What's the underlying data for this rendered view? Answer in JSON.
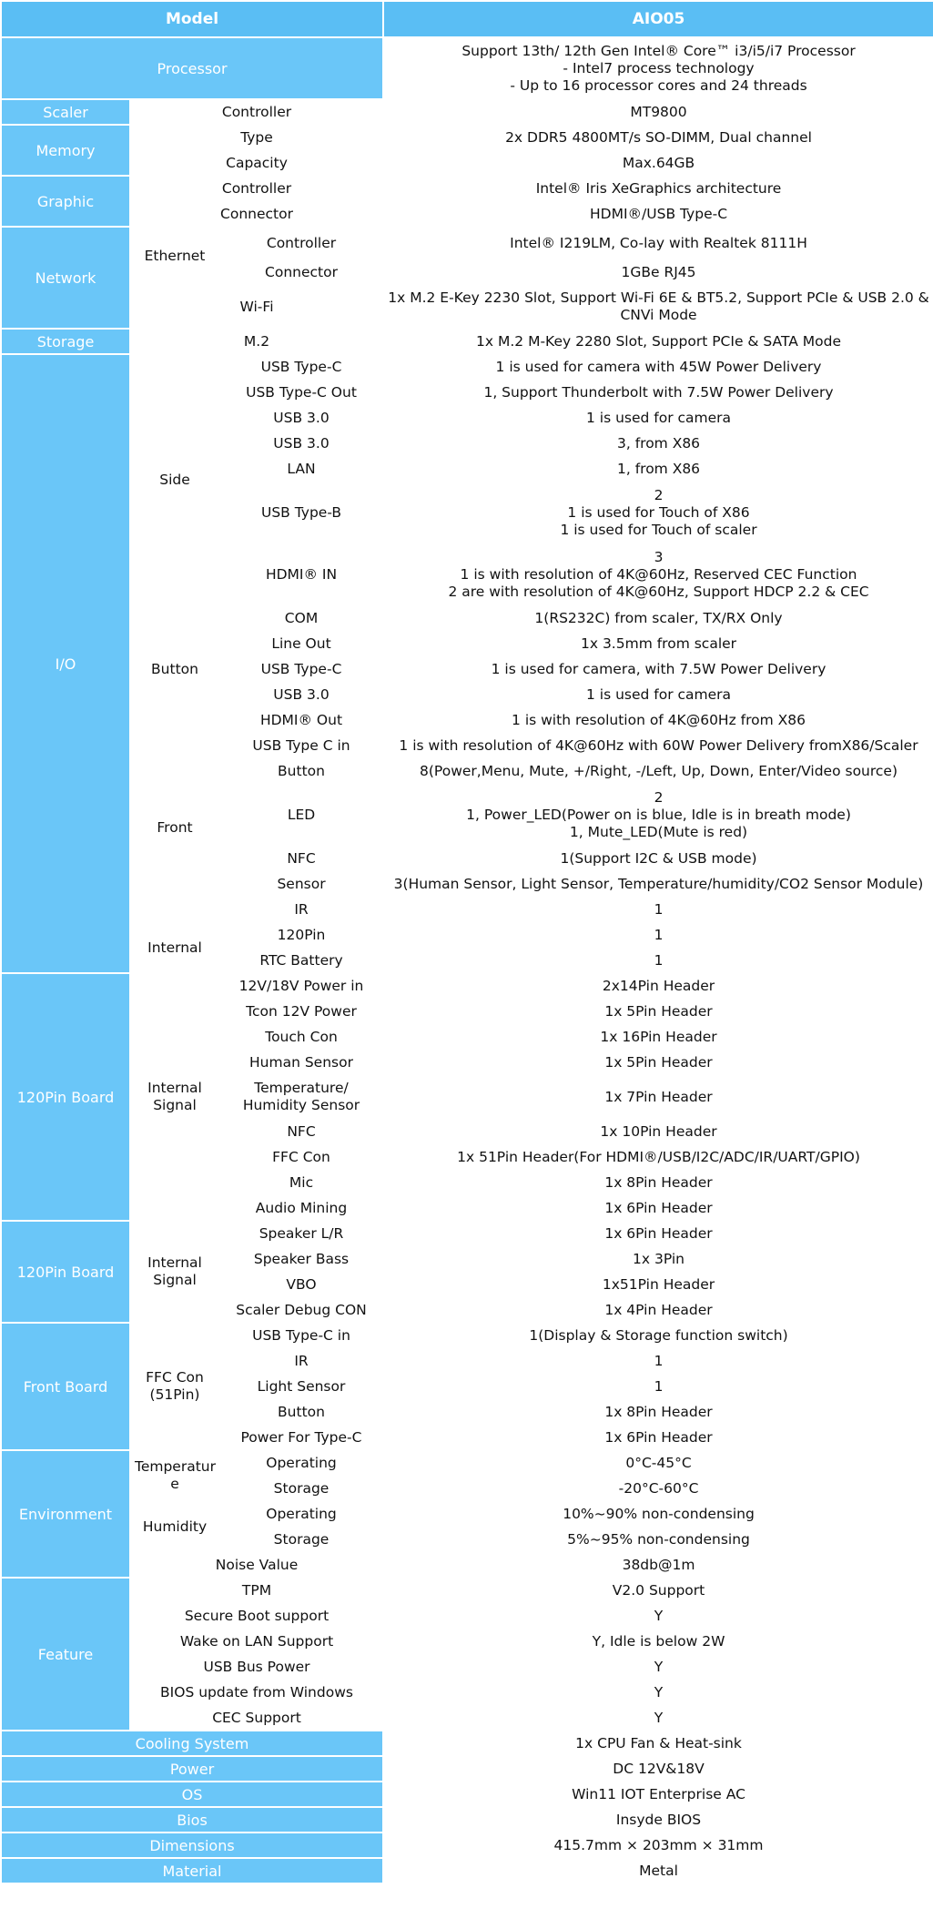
{
  "header": {
    "model_label": "Model",
    "model_value": "AIO05"
  },
  "processor": {
    "label": "Processor",
    "value": "Support 13th/ 12th Gen Intel® Core™ i3/i5/i7 Processor\n- Intel7 process technology\n- Up to 16 processor cores and 24 threads"
  },
  "scaler": {
    "label": "Scaler",
    "controller_label": "Controller",
    "controller": "MT9800"
  },
  "memory": {
    "label": "Memory",
    "type_label": "Type",
    "type": "2x DDR5 4800MT/s  SO-DIMM, Dual channel",
    "capacity_label": "Capacity",
    "capacity": "Max.64GB"
  },
  "graphic": {
    "label": "Graphic",
    "controller_label": "Controller",
    "controller": "Intel® Iris XeGraphics architecture",
    "connector_label": "Connector",
    "connector": "HDMI®/USB Type-C"
  },
  "network": {
    "label": "Network",
    "ethernet_label": "Ethernet",
    "eth_controller_label": "Controller",
    "eth_controller": "Intel® I219LM, Co-lay with Realtek 8111H",
    "eth_connector_label": "Connector",
    "eth_connector": "1GBe RJ45",
    "wifi_label": "Wi-Fi",
    "wifi": "1x M.2 E-Key 2230 Slot, Support Wi-Fi 6E & BT5.2, Support PCIe & USB 2.0 & CNVi Mode"
  },
  "storage": {
    "label": "Storage",
    "m2_label": "M.2",
    "m2": "1x M.2 M-Key 2280 Slot, Support PCIe & SATA Mode"
  },
  "io": {
    "label": "I/O",
    "side_label": "Side",
    "side": [
      {
        "name": "USB Type-C",
        "value": "1 is used for camera with 45W Power Delivery"
      },
      {
        "name": "USB Type-C Out",
        "value": "1, Support Thunderbolt with 7.5W Power Delivery"
      },
      {
        "name": "USB 3.0",
        "value": "1 is used for camera"
      },
      {
        "name": "USB 3.0",
        "value": "3, from X86"
      },
      {
        "name": "LAN",
        "value": "1, from X86"
      },
      {
        "name": "USB Type-B",
        "value": "2\n1 is used for Touch of X86\n1 is used for Touch of scaler"
      },
      {
        "name": "HDMI® IN",
        "value": "3\n1 is with resolution of 4K@60Hz, Reserved CEC Function\n2 are with resolution of 4K@60Hz, Support HDCP 2.2 & CEC"
      }
    ],
    "button_label": "Button",
    "button": [
      {
        "name": "COM",
        "value": "1(RS232C) from scaler, TX/RX Only"
      },
      {
        "name": "Line Out",
        "value": "1x 3.5mm from scaler"
      },
      {
        "name": "USB Type-C",
        "value": "1 is used for camera, with 7.5W Power Delivery"
      },
      {
        "name": "USB 3.0",
        "value": "1 is used for camera"
      },
      {
        "name": "HDMI® Out",
        "value": "1 is with resolution of 4K@60Hz from X86"
      }
    ],
    "front_label": "Front",
    "front": [
      {
        "name": "USB Type C in",
        "value": "1 is with resolution of 4K@60Hz with 60W Power Delivery fromX86/Scaler"
      },
      {
        "name": "Button",
        "value": "8(Power,Menu, Mute, +/Right, -/Left, Up, Down, Enter/Video source)"
      },
      {
        "name": "LED",
        "value": "2\n1, Power_LED(Power on is blue, Idle is in breath mode)\n1, Mute_LED(Mute is red)"
      },
      {
        "name": "NFC",
        "value": "1(Support I2C & USB mode)"
      },
      {
        "name": "Sensor",
        "value": "3(Human Sensor, Light Sensor, Temperature/humidity/CO2 Sensor Module)"
      },
      {
        "name": "IR",
        "value": "1"
      }
    ],
    "internal_label": "Internal",
    "internal": [
      {
        "name": "120Pin",
        "value": "1"
      },
      {
        "name": "RTC Battery",
        "value": "1"
      }
    ]
  },
  "board1": {
    "label": "120Pin Board",
    "group_label": "Internal\nSignal",
    "rows": [
      {
        "name": "12V/18V Power in",
        "value": "2x14Pin Header"
      },
      {
        "name": "Tcon 12V Power",
        "value": "1x 5Pin Header"
      },
      {
        "name": "Touch Con",
        "value": "1x 16Pin Header"
      },
      {
        "name": "Human Sensor",
        "value": "1x 5Pin Header"
      },
      {
        "name": "Temperature/\nHumidity Sensor",
        "value": "1x 7Pin Header"
      },
      {
        "name": "NFC",
        "value": "1x 10Pin Header"
      },
      {
        "name": "FFC Con",
        "value": "1x 51Pin Header(For HDMI®/USB/I2C/ADC/IR/UART/GPIO)"
      },
      {
        "name": "Mic",
        "value": "1x 8Pin Header"
      },
      {
        "name": "Audio Mining",
        "value": "1x 6Pin Header"
      }
    ]
  },
  "board2": {
    "label": "120Pin Board",
    "group_label": "Internal\nSignal",
    "rows": [
      {
        "name": "Speaker L/R",
        "value": "1x 6Pin Header"
      },
      {
        "name": "Speaker Bass",
        "value": "1x 3Pin"
      },
      {
        "name": "VBO",
        "value": "1x51Pin Header"
      },
      {
        "name": "Scaler Debug CON",
        "value": "1x 4Pin Header"
      }
    ]
  },
  "front_board": {
    "label": "Front Board",
    "group_label": "FFC Con\n(51Pin)",
    "rows": [
      {
        "name": "USB Type-C in",
        "value": "1(Display & Storage function switch)"
      },
      {
        "name": "IR",
        "value": "1"
      },
      {
        "name": "Light Sensor",
        "value": "1"
      },
      {
        "name": "Button",
        "value": "1x 8Pin Header"
      },
      {
        "name": "Power For Type-C",
        "value": "1x 6Pin Header"
      }
    ]
  },
  "environment": {
    "label": "Environment",
    "temp_label": "Temperatur\ne",
    "temp_operating_label": "Operating",
    "temp_operating": "0°C-45°C",
    "temp_storage_label": "Storage",
    "temp_storage": "-20°C-60°C",
    "humidity_label": "Humidity",
    "hum_operating_label": "Operating",
    "hum_operating": "10%~90%   non-condensing",
    "hum_storage_label": "Storage",
    "hum_storage": "5%~95%  non-condensing",
    "noise_label": "Noise Value",
    "noise": "38db@1m"
  },
  "feature": {
    "label": "Feature",
    "rows": [
      {
        "name": "TPM",
        "value": "V2.0 Support"
      },
      {
        "name": "Secure Boot support",
        "value": "Y"
      },
      {
        "name": "Wake on LAN Support",
        "value": "Y, Idle is below 2W"
      },
      {
        "name": "USB Bus Power",
        "value": "Y"
      },
      {
        "name": "BIOS update from Windows",
        "value": "Y"
      },
      {
        "name": "CEC Support",
        "value": "Y"
      }
    ]
  },
  "bottom": [
    {
      "name": "Cooling System",
      "value": "1x CPU Fan & Heat-sink"
    },
    {
      "name": "Power",
      "value": "DC 12V&18V"
    },
    {
      "name": "OS",
      "value": "Win11 IOT Enterprise AC"
    },
    {
      "name": "Bios",
      "value": "Insyde BIOS"
    },
    {
      "name": "Dimensions",
      "value": "415.7mm × 203mm × 31mm"
    },
    {
      "name": "Material",
      "value": "Metal"
    }
  ]
}
